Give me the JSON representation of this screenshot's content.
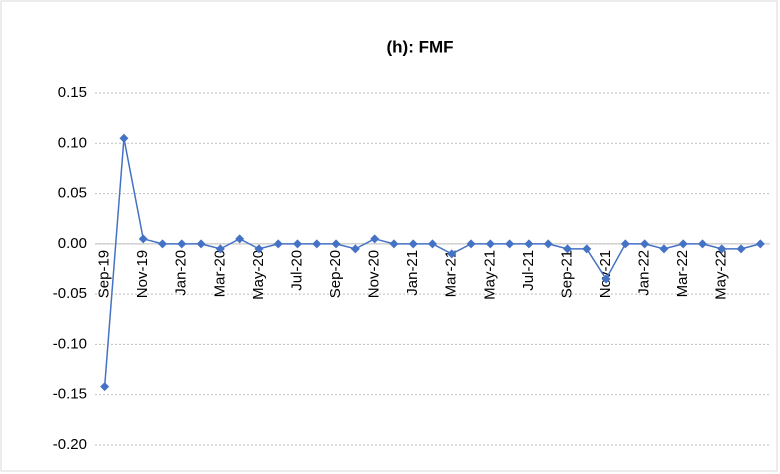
{
  "chart_data": {
    "type": "line",
    "title": "(h): FMF",
    "categories": [
      "Sep-19",
      null,
      "Nov-19",
      null,
      "Jan-20",
      null,
      "Mar-20",
      null,
      "May-20",
      null,
      "Jul-20",
      null,
      "Sep-20",
      null,
      "Nov-20",
      null,
      "Jan-21",
      null,
      "Mar-21",
      null,
      "May-21",
      null,
      "Jul-21",
      null,
      "Sep-21",
      null,
      "Nov-21",
      null,
      "Jan-22",
      null,
      "Mar-22",
      null,
      "May-22",
      null,
      null
    ],
    "series": [
      {
        "name": "FMF",
        "color": "#4472c4",
        "values": [
          -0.142,
          0.105,
          0.005,
          0,
          0,
          0,
          -0.005,
          0.005,
          -0.005,
          0,
          0,
          0,
          0,
          -0.005,
          0.005,
          0,
          0,
          0,
          -0.01,
          0,
          0,
          0,
          0,
          0,
          -0.005,
          -0.005,
          -0.035,
          0,
          0,
          -0.005,
          0,
          0,
          -0.005,
          -0.005,
          0
        ]
      }
    ],
    "ylim": [
      -0.2,
      0.15
    ],
    "yticks": [
      {
        "value": -0.2,
        "label": "-0.20"
      },
      {
        "value": -0.15,
        "label": "-0.15"
      },
      {
        "value": -0.1,
        "label": "-0.10"
      },
      {
        "value": -0.05,
        "label": "-0.05"
      },
      {
        "value": 0,
        "label": "0.00"
      },
      {
        "value": 0.05,
        "label": "0.05"
      },
      {
        "value": 0.1,
        "label": "0.10"
      },
      0.15
    ],
    "grid": true
  }
}
